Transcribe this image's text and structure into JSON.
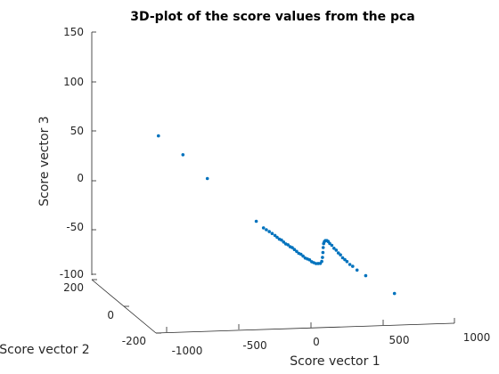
{
  "chart_data": {
    "type": "scatter",
    "title": "3D-plot of the score values from the pca",
    "xlabel": "Score vector 1",
    "ylabel": "Score vector 2",
    "zlabel": "Score vector 3",
    "xlim": [
      -1000,
      1000
    ],
    "ylim": [
      -200,
      200
    ],
    "zlim": [
      -100,
      150
    ],
    "x_ticks": [
      "-1000",
      "-500",
      "0",
      "500",
      "1000"
    ],
    "y_ticks": [
      "-200",
      "0",
      "200"
    ],
    "z_ticks": [
      "-100",
      "-50",
      "0",
      "50",
      "100",
      "150"
    ],
    "grid": false,
    "marker_color": "#0072bd",
    "points": [
      {
        "x": -1060,
        "y": 0,
        "z": 100
      },
      {
        "x": -890,
        "y": 0,
        "z": 80
      },
      {
        "x": -720,
        "y": 0,
        "z": 55
      },
      {
        "x": -380,
        "y": 0,
        "z": 10
      },
      {
        "x": -330,
        "y": 0,
        "z": 3
      },
      {
        "x": -310,
        "y": 0,
        "z": 1
      },
      {
        "x": -290,
        "y": 0,
        "z": -1
      },
      {
        "x": -270,
        "y": 0,
        "z": -3
      },
      {
        "x": -250,
        "y": 0,
        "z": -5
      },
      {
        "x": -235,
        "y": 0,
        "z": -7
      },
      {
        "x": -220,
        "y": 0,
        "z": -9
      },
      {
        "x": -205,
        "y": 0,
        "z": -10
      },
      {
        "x": -190,
        "y": 0,
        "z": -12
      },
      {
        "x": -175,
        "y": 0,
        "z": -14
      },
      {
        "x": -160,
        "y": 0,
        "z": -15
      },
      {
        "x": -145,
        "y": 0,
        "z": -17
      },
      {
        "x": -130,
        "y": 0,
        "z": -18
      },
      {
        "x": -115,
        "y": 0,
        "z": -20
      },
      {
        "x": -100,
        "y": 0,
        "z": -22
      },
      {
        "x": -85,
        "y": 0,
        "z": -24
      },
      {
        "x": -70,
        "y": 0,
        "z": -25
      },
      {
        "x": -55,
        "y": 0,
        "z": -27
      },
      {
        "x": -40,
        "y": 0,
        "z": -29
      },
      {
        "x": -25,
        "y": 0,
        "z": -30
      },
      {
        "x": -10,
        "y": 0,
        "z": -31
      },
      {
        "x": 5,
        "y": 0,
        "z": -33
      },
      {
        "x": 20,
        "y": 0,
        "z": -34
      },
      {
        "x": 35,
        "y": 0,
        "z": -35
      },
      {
        "x": 50,
        "y": 0,
        "z": -35
      },
      {
        "x": 65,
        "y": 0,
        "z": -35
      },
      {
        "x": 75,
        "y": 0,
        "z": -33
      },
      {
        "x": 80,
        "y": 0,
        "z": -29
      },
      {
        "x": 83,
        "y": 0,
        "z": -24
      },
      {
        "x": 85,
        "y": 0,
        "z": -19
      },
      {
        "x": 88,
        "y": 0,
        "z": -15
      },
      {
        "x": 93,
        "y": 0,
        "z": -13
      },
      {
        "x": 100,
        "y": 0,
        "z": -12
      },
      {
        "x": 110,
        "y": 0,
        "z": -12
      },
      {
        "x": 120,
        "y": 0,
        "z": -13
      },
      {
        "x": 130,
        "y": 0,
        "z": -15
      },
      {
        "x": 145,
        "y": 0,
        "z": -17
      },
      {
        "x": 160,
        "y": 0,
        "z": -20
      },
      {
        "x": 175,
        "y": 0,
        "z": -22
      },
      {
        "x": 190,
        "y": 0,
        "z": -25
      },
      {
        "x": 205,
        "y": 0,
        "z": -27
      },
      {
        "x": 220,
        "y": 0,
        "z": -30
      },
      {
        "x": 235,
        "y": 0,
        "z": -32
      },
      {
        "x": 250,
        "y": 0,
        "z": -34
      },
      {
        "x": 270,
        "y": 0,
        "z": -37
      },
      {
        "x": 290,
        "y": 0,
        "z": -39
      },
      {
        "x": 320,
        "y": 0,
        "z": -43
      },
      {
        "x": 380,
        "y": 0,
        "z": -49
      },
      {
        "x": 580,
        "y": 0,
        "z": -68
      }
    ]
  }
}
